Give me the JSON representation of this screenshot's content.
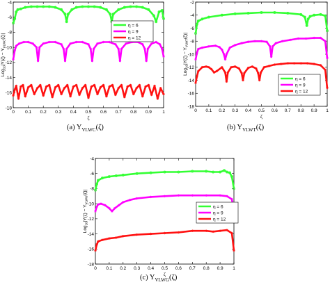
{
  "panels": [
    {
      "caption": "(a) Y",
      "caption_sub": "VLWC",
      "caption_tail": "(ζ)",
      "ylabel": "Log10|Y(ζ) − YVLWC(ζ)|",
      "ylabel_main": "Log",
      "ylabel_sub": "10",
      "ylabel_rest": "|Y(ζ) − Y",
      "ylabel_sub2": "VLWC",
      "ylabel_end": "(ζ)|"
    },
    {
      "caption": "(b) Y",
      "caption_sub": "VLWT",
      "caption_tail": "(ζ)",
      "ylabel": "Log10|Y(ζ) − YVLWT(ζ)|",
      "ylabel_main": "Log",
      "ylabel_sub": "10",
      "ylabel_rest": "|Y(ζ) − Y",
      "ylabel_sub2": "VLWT",
      "ylabel_end": "(ζ)|"
    },
    {
      "caption": "(c) Y",
      "caption_sub": "VLWG",
      "caption_tail": "(ζ)",
      "ylabel": "Log10|Y(ζ) − YVLWG(ζ)|",
      "ylabel_main": "Log",
      "ylabel_sub": "10",
      "ylabel_rest": "|Y(ζ) − Y",
      "ylabel_sub2": "VLWG",
      "ylabel_end": "(ζ)|"
    }
  ],
  "colors": {
    "eta6": "#33ff33",
    "eta9": "#ff00ff",
    "eta12": "#ff1111"
  },
  "chart_data": [
    {
      "type": "line",
      "xlabel": "ζ",
      "xlim": [
        0,
        1
      ],
      "ylim": [
        -18,
        -4
      ],
      "xticks": [
        0,
        0.1,
        0.2,
        0.3,
        0.4,
        0.5,
        0.6,
        0.7,
        0.8,
        0.9,
        1
      ],
      "yticks": [
        -4,
        -6,
        -8,
        -10,
        -12,
        -14,
        -16,
        -18
      ],
      "legend": {
        "position": "top-right",
        "entries": [
          "η = 6",
          "η = 9",
          "η = 12"
        ]
      },
      "series": [
        {
          "name": "η = 6",
          "x": [
            0,
            0.01,
            0.02,
            0.03,
            0.05,
            0.08,
            0.12,
            0.16,
            0.2,
            0.24,
            0.28,
            0.32,
            0.345,
            0.355,
            0.365,
            0.39,
            0.42,
            0.46,
            0.5,
            0.54,
            0.58,
            0.62,
            0.645,
            0.655,
            0.665,
            0.7,
            0.74,
            0.78,
            0.82,
            0.86,
            0.9,
            0.935,
            0.95,
            0.97,
            0.99,
            1
          ],
          "y": [
            -6.8,
            -6.2,
            -5.3,
            -5.0,
            -4.9,
            -4.7,
            -4.6,
            -4.6,
            -4.6,
            -4.6,
            -4.7,
            -5.0,
            -5.6,
            -6.6,
            -5.6,
            -5.0,
            -4.7,
            -4.6,
            -4.6,
            -4.6,
            -4.7,
            -5.0,
            -5.6,
            -6.6,
            -5.6,
            -5.0,
            -4.7,
            -4.6,
            -4.6,
            -4.7,
            -5.0,
            -5.8,
            -6.6,
            -5.3,
            -5.1,
            -6.2
          ]
        },
        {
          "name": "η = 9",
          "x": [
            0,
            0.01,
            0.02,
            0.04,
            0.07,
            0.1,
            0.13,
            0.155,
            0.165,
            0.175,
            0.2,
            0.24,
            0.28,
            0.32,
            0.335,
            0.345,
            0.355,
            0.38,
            0.42,
            0.46,
            0.5,
            0.515,
            0.525,
            0.535,
            0.56,
            0.6,
            0.64,
            0.68,
            0.7,
            0.71,
            0.72,
            0.75,
            0.79,
            0.83,
            0.86,
            0.875,
            0.885,
            0.895,
            0.92,
            0.95,
            0.975,
            0.99,
            1
          ],
          "y": [
            -11.6,
            -10.4,
            -9.8,
            -9.5,
            -9.3,
            -9.3,
            -9.5,
            -10.0,
            -11.8,
            -10.0,
            -9.5,
            -9.3,
            -9.3,
            -9.6,
            -10.2,
            -11.8,
            -10.2,
            -9.5,
            -9.3,
            -9.3,
            -9.6,
            -10.2,
            -11.8,
            -10.2,
            -9.5,
            -9.3,
            -9.3,
            -9.6,
            -10.2,
            -11.8,
            -10.2,
            -9.5,
            -9.3,
            -9.3,
            -9.6,
            -10.2,
            -11.8,
            -10.2,
            -9.5,
            -9.3,
            -9.6,
            -10.2,
            -11.2
          ]
        },
        {
          "name": "η = 12",
          "x": [
            0,
            0.01,
            0.02,
            0.035,
            0.05,
            0.065,
            0.08,
            0.1,
            0.12,
            0.14,
            0.16,
            0.18,
            0.2,
            0.22,
            0.24,
            0.26,
            0.28,
            0.3,
            0.32,
            0.34,
            0.36,
            0.38,
            0.4,
            0.42,
            0.44,
            0.46,
            0.48,
            0.5,
            0.52,
            0.54,
            0.56,
            0.58,
            0.6,
            0.62,
            0.64,
            0.66,
            0.68,
            0.7,
            0.72,
            0.74,
            0.76,
            0.78,
            0.8,
            0.82,
            0.84,
            0.86,
            0.88,
            0.9,
            0.92,
            0.94,
            0.96,
            0.98,
            1
          ],
          "y": [
            -16.4,
            -15.6,
            -15.1,
            -16.8,
            -15.2,
            -15.0,
            -16.5,
            -15.3,
            -15.0,
            -16.2,
            -15.4,
            -15.0,
            -16.4,
            -15.2,
            -15.0,
            -16.6,
            -15.3,
            -15.0,
            -16.2,
            -15.4,
            -15.0,
            -16.5,
            -15.2,
            -15.0,
            -16.3,
            -15.4,
            -15.0,
            -16.7,
            -15.2,
            -15.0,
            -16.2,
            -15.3,
            -15.0,
            -16.5,
            -15.2,
            -15.0,
            -16.3,
            -15.4,
            -15.0,
            -16.6,
            -15.2,
            -15.0,
            -16.2,
            -15.4,
            -15.0,
            -16.5,
            -15.2,
            -15.0,
            -16.3,
            -15.1,
            -16.8,
            -15.4,
            -16.2
          ]
        }
      ]
    },
    {
      "type": "line",
      "xlabel": "ζ",
      "xlim": [
        0,
        1
      ],
      "ylim": [
        -18,
        -2
      ],
      "xticks": [
        0,
        0.1,
        0.2,
        0.3,
        0.4,
        0.5,
        0.6,
        0.7,
        0.8,
        0.9,
        1
      ],
      "yticks": [
        -2,
        -4,
        -6,
        -8,
        -10,
        -12,
        -14,
        -16,
        -18
      ],
      "legend": {
        "position": "top-right",
        "entries": [
          "η = 6",
          "η = 9",
          "η = 12"
        ]
      },
      "series": [
        {
          "name": "η = 6",
          "x": [
            0,
            0.01,
            0.02,
            0.05,
            0.1,
            0.2,
            0.3,
            0.4,
            0.5,
            0.6,
            0.7,
            0.8,
            0.83,
            0.845,
            0.855,
            0.87,
            0.9,
            0.95,
            0.985,
            1
          ],
          "y": [
            -6.8,
            -5.4,
            -4.9,
            -4.6,
            -4.3,
            -4.0,
            -3.8,
            -3.7,
            -3.6,
            -3.6,
            -3.7,
            -3.9,
            -4.3,
            -5.6,
            -4.6,
            -4.2,
            -4.0,
            -3.9,
            -4.1,
            -6.4
          ]
        },
        {
          "name": "η = 9",
          "x": [
            0,
            0.01,
            0.02,
            0.05,
            0.1,
            0.15,
            0.18,
            0.2,
            0.215,
            0.225,
            0.235,
            0.26,
            0.3,
            0.35,
            0.4,
            0.45,
            0.5,
            0.54,
            0.565,
            0.575,
            0.585,
            0.61,
            0.66,
            0.72,
            0.78,
            0.84,
            0.9,
            0.95,
            0.985,
            1
          ],
          "y": [
            -10.8,
            -9.8,
            -9.2,
            -9.0,
            -8.8,
            -8.7,
            -8.9,
            -9.3,
            -10.0,
            -10.8,
            -10.0,
            -9.0,
            -8.6,
            -8.3,
            -8.1,
            -8.0,
            -8.0,
            -8.1,
            -8.8,
            -10.4,
            -8.8,
            -8.3,
            -8.0,
            -7.8,
            -7.6,
            -7.6,
            -7.5,
            -7.5,
            -8.0,
            -10.6
          ]
        },
        {
          "name": "η = 12",
          "x": [
            0,
            0.01,
            0.02,
            0.05,
            0.08,
            0.1,
            0.12,
            0.14,
            0.16,
            0.2,
            0.225,
            0.235,
            0.245,
            0.27,
            0.3,
            0.33,
            0.35,
            0.36,
            0.37,
            0.4,
            0.43,
            0.46,
            0.475,
            0.485,
            0.495,
            0.52,
            0.56,
            0.6,
            0.65,
            0.7,
            0.75,
            0.8,
            0.85,
            0.9,
            0.95,
            0.985,
            1
          ],
          "y": [
            -14.4,
            -13.4,
            -12.6,
            -12.0,
            -11.9,
            -12.0,
            -12.3,
            -12.8,
            -12.6,
            -12.0,
            -12.8,
            -14.2,
            -12.8,
            -12.0,
            -11.9,
            -12.2,
            -12.9,
            -14.0,
            -12.9,
            -12.1,
            -11.9,
            -12.2,
            -12.9,
            -14.0,
            -12.8,
            -12.0,
            -11.8,
            -11.6,
            -11.5,
            -11.4,
            -11.4,
            -11.4,
            -11.4,
            -11.5,
            -11.7,
            -12.4,
            -15.2
          ]
        }
      ]
    },
    {
      "type": "line",
      "xlabel": "ζ",
      "xlim": [
        0,
        1
      ],
      "ylim": [
        -18,
        -4
      ],
      "xticks": [
        0,
        0.1,
        0.2,
        0.3,
        0.4,
        0.5,
        0.6,
        0.7,
        0.8,
        0.9,
        1
      ],
      "yticks": [
        -4,
        -6,
        -8,
        -10,
        -12,
        -14,
        -16,
        -18
      ],
      "legend": {
        "position": "right",
        "entries": [
          "η = 6",
          "η = 9",
          "η = 12"
        ]
      },
      "series": [
        {
          "name": "η = 6",
          "x": [
            0,
            0.01,
            0.02,
            0.05,
            0.1,
            0.15,
            0.2,
            0.3,
            0.4,
            0.5,
            0.6,
            0.7,
            0.8,
            0.85,
            0.9,
            0.93,
            0.95,
            0.97,
            0.985,
            1
          ],
          "y": [
            -8.2,
            -7.4,
            -6.9,
            -6.6,
            -6.4,
            -6.3,
            -6.2,
            -6.0,
            -5.9,
            -5.8,
            -5.8,
            -5.7,
            -5.7,
            -5.8,
            -5.8,
            -5.6,
            -5.8,
            -5.9,
            -6.4,
            -8.0
          ]
        },
        {
          "name": "η = 9",
          "x": [
            0,
            0.01,
            0.02,
            0.04,
            0.07,
            0.1,
            0.12,
            0.14,
            0.17,
            0.2,
            0.25,
            0.3,
            0.4,
            0.5,
            0.6,
            0.7,
            0.8,
            0.9,
            0.95,
            0.985,
            1
          ],
          "y": [
            -11.0,
            -10.4,
            -10.1,
            -10.0,
            -10.2,
            -10.6,
            -11.0,
            -10.6,
            -10.2,
            -9.8,
            -9.5,
            -9.3,
            -9.1,
            -9.0,
            -8.9,
            -8.9,
            -8.9,
            -8.9,
            -9.0,
            -9.4,
            -11.0
          ]
        },
        {
          "name": "η = 12",
          "x": [
            0,
            0.01,
            0.02,
            0.05,
            0.1,
            0.15,
            0.2,
            0.3,
            0.4,
            0.5,
            0.6,
            0.7,
            0.8,
            0.85,
            0.9,
            0.95,
            0.985,
            1
          ],
          "y": [
            -16.2,
            -15.4,
            -15.0,
            -14.8,
            -14.6,
            -14.5,
            -14.3,
            -14.1,
            -14.0,
            -13.9,
            -13.8,
            -13.6,
            -13.6,
            -13.7,
            -13.6,
            -13.5,
            -13.9,
            -16.2
          ]
        }
      ]
    }
  ]
}
